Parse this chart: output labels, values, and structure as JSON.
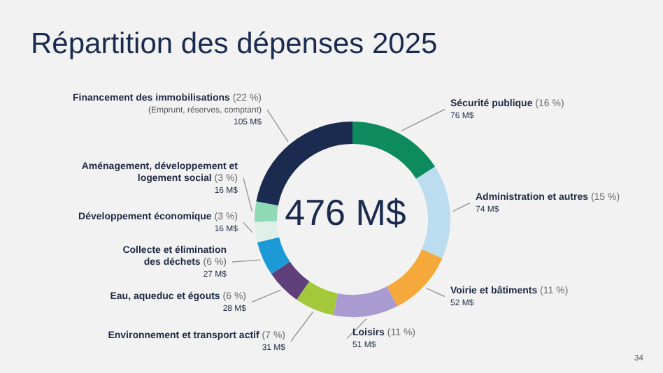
{
  "chart_data": {
    "type": "donut",
    "title": "Répartition des dépenses 2025",
    "categories": [
      "Sécurité publique",
      "Administration et autres",
      "Voirie et bâtiments",
      "Loisirs",
      "Environnement et transport actif",
      "Eau, aqueduc et égouts",
      "Collecte et élimination\ndes déchets",
      "Développement économique",
      "Aménagement, développement et\nlogement social",
      "Financement des immobilisations"
    ],
    "values": [
      76,
      74,
      52,
      51,
      31,
      28,
      27,
      16,
      16,
      105
    ],
    "colors": [
      "#0e8a5f",
      "#bcdcef",
      "#f5a93a",
      "#a99bd1",
      "#a3c93a",
      "#5f3f7a",
      "#1b9ad6",
      "#e0f0e8",
      "#8fd9b6",
      "#1a2b4f"
    ],
    "value_labels": [
      "(16 %)\n76 M$",
      "(15 %)\n74 M$",
      "(11 %)\n52 M$",
      "(11 %)\n51 M$",
      "(7 %)\n31 M$",
      "(6 %)\n28 M$",
      "(6 %)\n27 M$",
      "(3 %)\n16 M$",
      "(3 %)\n16 M$",
      "(22 %)\n(Emprunt, réserves, comptant)\n105 M$"
    ],
    "annotations": [
      "476 M$",
      "34"
    ],
    "legend": false
  }
}
